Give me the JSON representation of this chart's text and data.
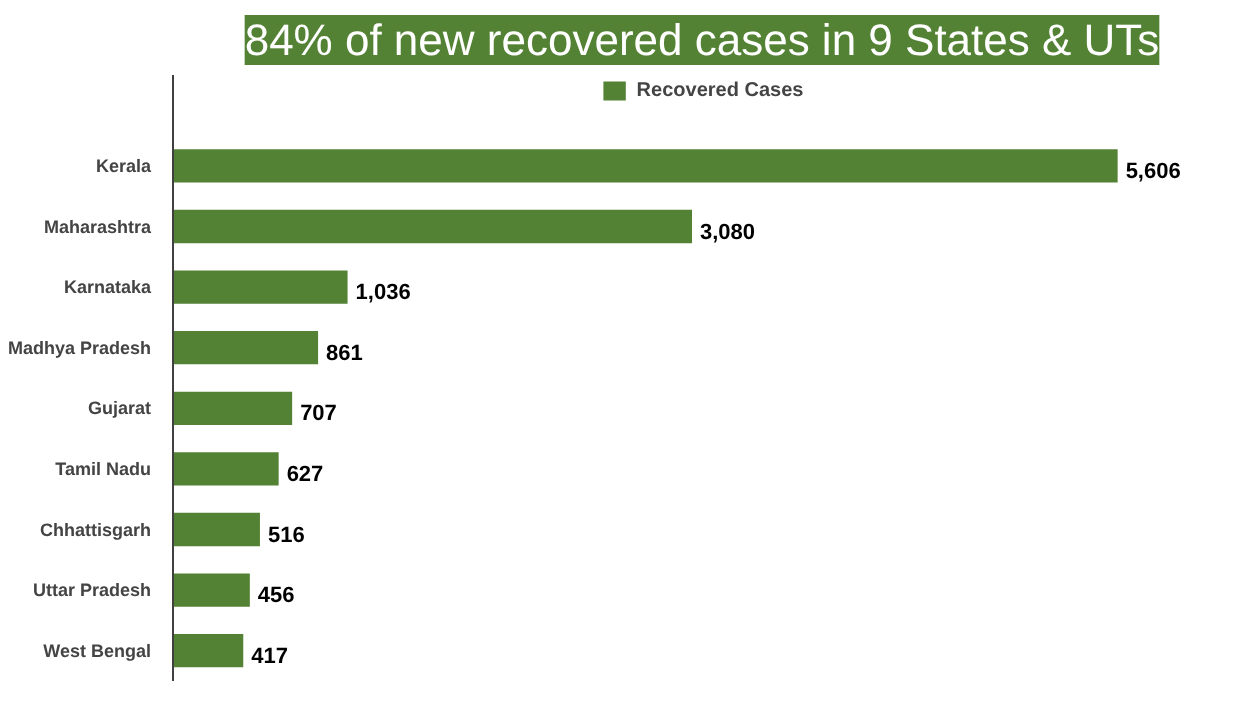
{
  "chart_data": {
    "type": "bar",
    "orientation": "horizontal",
    "title": "84% of new recovered cases in 9 States & UTs",
    "categories": [
      "Kerala",
      "Maharashtra",
      "Karnataka",
      "Madhya Pradesh",
      "Gujarat",
      "Tamil Nadu",
      "Chhattisgarh",
      "Uttar Pradesh",
      "West Bengal"
    ],
    "series": [
      {
        "name": "Recovered Cases",
        "color": "#548235",
        "values": [
          5606,
          3080,
          1036,
          861,
          707,
          627,
          516,
          456,
          417
        ],
        "value_labels": [
          "5,606",
          "3,080",
          "1,036",
          "861",
          "707",
          "627",
          "516",
          "456",
          "417"
        ]
      }
    ],
    "legend": "top",
    "grid": false
  }
}
